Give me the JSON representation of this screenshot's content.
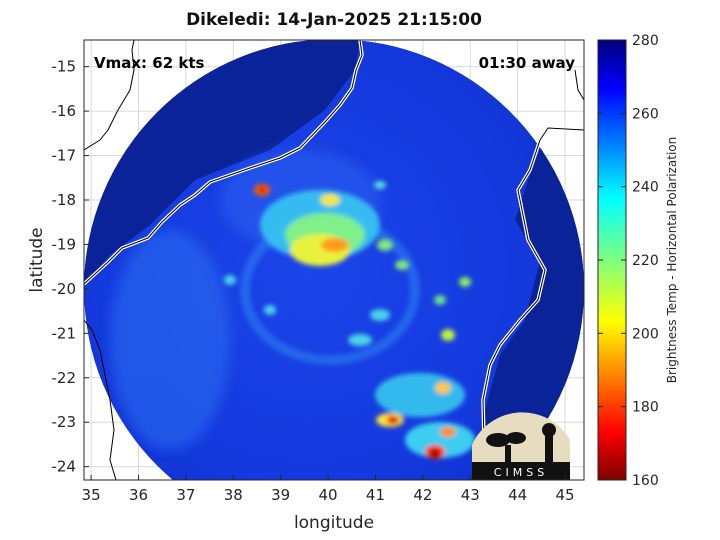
{
  "title": "Dikeledi: 14-Jan-2025 21:15:00",
  "vmax_label": "Vmax: 62 kts",
  "away_label": "01:30 away",
  "xlabel": "longitude",
  "ylabel": "latitude",
  "colorbar_label": "Brightness Temp - Horizontal Polarization",
  "logo_text": "CIMSS",
  "x_ticks": [
    "35",
    "36",
    "37",
    "38",
    "39",
    "40",
    "41",
    "42",
    "43",
    "44",
    "45"
  ],
  "y_ticks": [
    "-15",
    "-16",
    "-17",
    "-18",
    "-19",
    "-20",
    "-21",
    "-22",
    "-23",
    "-24"
  ],
  "cb_ticks": [
    "280",
    "260",
    "240",
    "220",
    "200",
    "180",
    "160"
  ],
  "chart_data": {
    "type": "heatmap",
    "title": "Dikeledi: 14-Jan-2025 21:15:00",
    "xlabel": "longitude",
    "ylabel": "latitude",
    "xlim": [
      34.85,
      45.4
    ],
    "ylim": [
      -24.3,
      -14.4
    ],
    "colorbar": {
      "label": "Brightness Temp - Horizontal Polarization",
      "range": [
        160,
        280
      ],
      "colormap": "jet"
    },
    "grid": true,
    "annotations": [
      "Vmax: 62 kts",
      "01:30 away"
    ],
    "swath_center": [
      40.0,
      -19.4
    ],
    "cold_cloud_features": [
      {
        "lon": 38.5,
        "lat": -17.8,
        "tb": 175
      },
      {
        "lon": 40.0,
        "lat": -18.0,
        "tb": 190
      },
      {
        "lon": 40.0,
        "lat": -19.0,
        "tb": 200
      },
      {
        "lon": 39.2,
        "lat": -19.0,
        "tb": 205
      },
      {
        "lon": 41.3,
        "lat": -22.9,
        "tb": 170
      },
      {
        "lon": 42.3,
        "lat": -23.7,
        "tb": 165
      },
      {
        "lon": 42.6,
        "lat": -23.3,
        "tb": 180
      },
      {
        "lon": 42.6,
        "lat": -22.3,
        "tb": 200
      },
      {
        "lon": 42.4,
        "lat": -21.3,
        "tb": 205
      }
    ]
  }
}
